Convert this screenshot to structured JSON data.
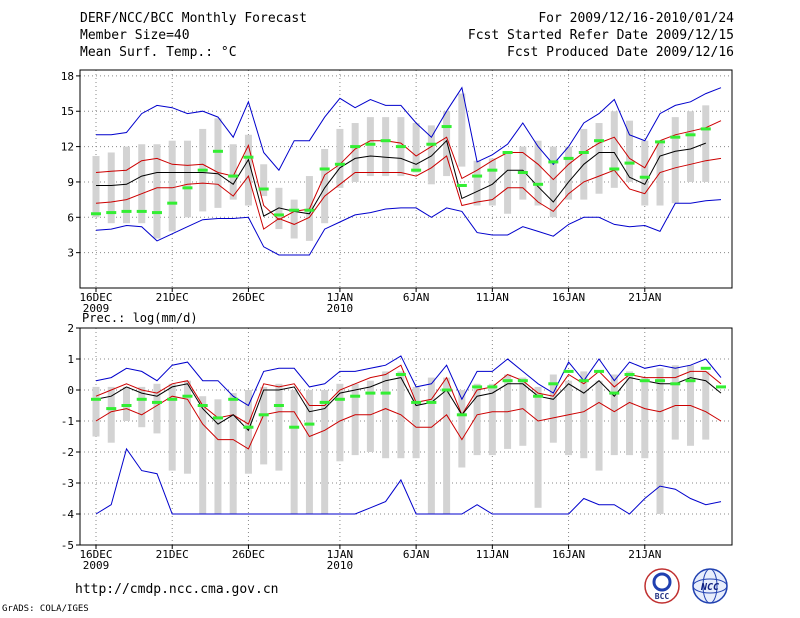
{
  "header": {
    "title": "DERF/NCC/BCC Monthly Forecast",
    "member_size": "Member Size=40",
    "variable1": "Mean Surf. Temp.: °C",
    "for_period": "For 2009/12/16-2010/01/24",
    "fcst_started": "Fcst Started Refer Date 2009/12/15",
    "fcst_produced": "Fcst Produced Date 2009/12/16"
  },
  "footer": {
    "url": "http://cmdp.ncc.cma.gov.cn",
    "grads": "GrADS: COLA/IGES",
    "logo_bcc": "BCC",
    "logo_ncc": "NCC"
  },
  "colors": {
    "max_line": "#0000cc",
    "pct_line": "#cc0000",
    "mean_line": "#000000",
    "box": "#d3d3d3",
    "obs_mark": "#33ee33",
    "grid": "#888888"
  },
  "chart_data": [
    {
      "type": "line",
      "title": "Mean Surf. Temp.: °C",
      "ylim": [
        0,
        18.5
      ],
      "yticks": [
        3,
        6,
        9,
        12,
        15,
        18
      ],
      "xtick_labels": [
        {
          "i": 0,
          "label": "16DEC",
          "sub": "2009"
        },
        {
          "i": 5,
          "label": "21DEC",
          "sub": ""
        },
        {
          "i": 10,
          "label": "26DEC",
          "sub": ""
        },
        {
          "i": 16,
          "label": "1JAN",
          "sub": "2010"
        },
        {
          "i": 21,
          "label": "6JAN",
          "sub": ""
        },
        {
          "i": 26,
          "label": "11JAN",
          "sub": ""
        },
        {
          "i": 31,
          "label": "16JAN",
          "sub": ""
        },
        {
          "i": 36,
          "label": "21JAN",
          "sub": ""
        }
      ],
      "days": 40,
      "series": [
        {
          "name": "max",
          "values": [
            13,
            13,
            13.2,
            14.8,
            15.5,
            15.3,
            14.8,
            15,
            14.5,
            12.8,
            15.8,
            11.5,
            10,
            12.5,
            12.5,
            14.5,
            16.1,
            15.3,
            16,
            15.5,
            15.5,
            14,
            12.8,
            15,
            17,
            10.7,
            11.3,
            12.2,
            14,
            12,
            10.5,
            12,
            14,
            14.8,
            16,
            13,
            12.5,
            14.8,
            15.5,
            15.8,
            16.5,
            17
          ]
        },
        {
          "name": "upper_pct",
          "values": [
            9.8,
            9.9,
            10,
            10.8,
            11,
            10.5,
            10.4,
            10.5,
            9.8,
            9.5,
            12.1,
            7,
            5.8,
            6.5,
            6.7,
            9.6,
            10.5,
            11.8,
            12.5,
            12.5,
            12.3,
            11.2,
            12,
            12.8,
            9.3,
            10,
            10.8,
            11.5,
            11.5,
            10.5,
            9.2,
            10.5,
            11.5,
            12.3,
            12.8,
            11,
            10.2,
            12.5,
            13,
            13.3,
            13.6,
            14.2
          ]
        },
        {
          "name": "mean",
          "values": [
            8.7,
            8.7,
            8.8,
            9.5,
            9.8,
            9.8,
            9.8,
            9.8,
            9.7,
            8.8,
            10.9,
            6.1,
            6.8,
            6.5,
            6.3,
            8.5,
            10.2,
            11,
            11.2,
            11.1,
            11,
            10.5,
            11.2,
            12.5,
            7.6,
            8.2,
            8.8,
            10,
            10,
            8.6,
            7.3,
            9,
            10.5,
            11.5,
            11.5,
            9.4,
            8.8,
            11.2,
            11.6,
            11.8,
            12.3
          ]
        },
        {
          "name": "lower_pct",
          "values": [
            7.2,
            7.3,
            7.5,
            8,
            8.5,
            8.5,
            8.8,
            8.9,
            8.8,
            7.8,
            9.5,
            5,
            5.9,
            5.4,
            6,
            7.8,
            8.8,
            9.8,
            9.8,
            9.8,
            9.8,
            9.5,
            10.2,
            11.2,
            7,
            7.3,
            7.5,
            8.5,
            8.5,
            7.3,
            6.5,
            8,
            9,
            9.5,
            10,
            8.4,
            8,
            9.8,
            10.2,
            10.5,
            10.8,
            11
          ]
        },
        {
          "name": "min",
          "values": [
            4.9,
            5,
            5.3,
            5.2,
            4,
            4.6,
            5.2,
            5.8,
            5.9,
            5.9,
            6,
            3.5,
            2.8,
            2.8,
            2.8,
            5,
            5.6,
            6.2,
            6.4,
            6.7,
            6.8,
            6.8,
            6,
            6.8,
            6.5,
            4.7,
            4.5,
            4.5,
            5.2,
            4.8,
            4.4,
            5.4,
            6,
            6,
            5.4,
            5.2,
            5.3,
            4.8,
            7.2,
            7.2,
            7.4,
            7.5
          ]
        }
      ],
      "boxes_low": [
        6,
        5.5,
        5.5,
        5.5,
        4.2,
        4.8,
        6,
        6.5,
        6.8,
        7.5,
        7,
        7.8,
        5,
        4.2,
        4,
        5.5,
        8.5,
        9,
        9.5,
        9.5,
        9.5,
        9.8,
        8.8,
        9.5,
        10.3,
        7,
        7,
        6.3,
        7.5,
        7,
        6,
        7.5,
        7.5,
        8,
        8.5,
        9,
        7,
        7,
        7.2,
        9,
        9
      ],
      "boxes_high": [
        11.2,
        11.5,
        12,
        12.2,
        12.2,
        12.5,
        12.5,
        13.5,
        14.4,
        12.2,
        13,
        10.5,
        8.5,
        7.5,
        9.5,
        11.8,
        13.5,
        14,
        14.5,
        14.5,
        14.5,
        14,
        13.8,
        15,
        16.5,
        10.8,
        11,
        11.5,
        12,
        12.5,
        12,
        12,
        13.5,
        14,
        15,
        14.2,
        12.5,
        12.5,
        14.5,
        15,
        15.5
      ],
      "obs_marks": [
        6.3,
        6.4,
        6.5,
        6.5,
        6.4,
        7.2,
        8.5,
        10,
        11.6,
        9.5,
        11.1,
        8.4,
        6.2,
        6.6,
        6.6,
        10.1,
        10.5,
        12,
        12.2,
        12.5,
        12,
        10,
        12.2,
        13.7,
        8.7,
        9.5,
        10,
        11.5,
        9.8,
        8.8,
        10.7,
        11,
        11.5,
        12.5,
        10.1,
        10.6,
        9.4,
        12.4,
        12.8,
        13,
        13.5
      ]
    },
    {
      "type": "line",
      "title": "Prec.: log(mm/d)",
      "ylim": [
        -5,
        2
      ],
      "yticks": [
        -5,
        -4,
        -3,
        -2,
        -1,
        0,
        1,
        2
      ],
      "xtick_labels": [
        {
          "i": 0,
          "label": "16DEC",
          "sub": "2009"
        },
        {
          "i": 5,
          "label": "21DEC",
          "sub": ""
        },
        {
          "i": 10,
          "label": "26DEC",
          "sub": ""
        },
        {
          "i": 16,
          "label": "1JAN",
          "sub": "2010"
        },
        {
          "i": 21,
          "label": "6JAN",
          "sub": ""
        },
        {
          "i": 26,
          "label": "11JAN",
          "sub": ""
        },
        {
          "i": 31,
          "label": "16JAN",
          "sub": ""
        },
        {
          "i": 36,
          "label": "21JAN",
          "sub": ""
        }
      ],
      "days": 40,
      "series": [
        {
          "name": "max",
          "values": [
            0.3,
            0.4,
            0.7,
            0.6,
            0.3,
            0.8,
            0.9,
            0.3,
            0.3,
            -0.2,
            -0.5,
            0.6,
            0.7,
            0.7,
            0.1,
            0.2,
            0.6,
            0.6,
            0.7,
            0.8,
            1.1,
            0.1,
            0.2,
            0.8,
            -0.3,
            0.6,
            0.6,
            1,
            0.6,
            0.2,
            -0.1,
            0.9,
            0.3,
            1,
            0.3,
            0.9,
            0.7,
            0.8,
            0.7,
            0.8,
            1,
            0.4
          ]
        },
        {
          "name": "upper_pct",
          "values": [
            -0.2,
            0,
            0.2,
            0,
            -0.1,
            0.2,
            0.3,
            -0.5,
            -0.9,
            -0.8,
            -1.1,
            0.2,
            0.1,
            0.2,
            -0.5,
            -0.5,
            0,
            0.2,
            0.4,
            0.5,
            0.8,
            -0.4,
            -0.3,
            0.4,
            -0.8,
            0,
            0.1,
            0.5,
            0.3,
            -0.1,
            -0.2,
            0.5,
            0.2,
            0.6,
            0.1,
            0.5,
            0.4,
            0.4,
            0.4,
            0.6,
            0.6,
            0.2
          ]
        },
        {
          "name": "mean",
          "values": [
            -0.3,
            -0.2,
            0.1,
            -0.1,
            -0.2,
            0.1,
            0.2,
            -0.6,
            -1.1,
            -0.8,
            -1.3,
            0,
            0,
            0.1,
            -0.7,
            -0.6,
            -0.1,
            0,
            0.1,
            0.3,
            0.4,
            -0.5,
            -0.4,
            0,
            -0.8,
            -0.2,
            -0.1,
            0.2,
            0.2,
            -0.2,
            -0.3,
            0.2,
            -0.1,
            0.3,
            -0.2,
            0.4,
            0.3,
            0.2,
            0.2,
            0.4,
            0.3,
            -0.1
          ]
        },
        {
          "name": "lower_pct",
          "values": [
            -1,
            -0.7,
            -0.6,
            -0.8,
            -0.5,
            -0.2,
            -0.3,
            -1.1,
            -1.6,
            -1.6,
            -1.9,
            -0.8,
            -0.7,
            -0.7,
            -1.5,
            -1.3,
            -1,
            -0.8,
            -0.8,
            -0.6,
            -0.8,
            -1.2,
            -1.2,
            -0.8,
            -1.6,
            -0.8,
            -0.7,
            -0.7,
            -0.6,
            -1,
            -0.9,
            -0.8,
            -0.7,
            -0.4,
            -0.7,
            -0.4,
            -0.6,
            -0.7,
            -0.5,
            -0.5,
            -0.7,
            -1
          ]
        },
        {
          "name": "min",
          "values": [
            -4,
            -3.7,
            -1.9,
            -2.6,
            -2.7,
            -4,
            -4,
            -4,
            -4,
            -4,
            -4,
            -4,
            -4,
            -4,
            -4,
            -4,
            -4,
            -4,
            -3.8,
            -3.6,
            -2.9,
            -4,
            -4,
            -4,
            -4,
            -3.7,
            -4,
            -4,
            -4,
            -4,
            -4,
            -4,
            -3.5,
            -3.7,
            -3.7,
            -4,
            -3.5,
            -3.1,
            -3.2,
            -3.5,
            -3.7,
            -3.6
          ]
        }
      ],
      "boxes_low": [
        -1.5,
        -1.7,
        -1,
        -1.2,
        -1.4,
        -2.6,
        -2.7,
        -4,
        -4,
        -4,
        -2.7,
        -2.4,
        -2.6,
        -4,
        -4,
        -4,
        -2.3,
        -2.1,
        -2,
        -2.2,
        -2.2,
        -2.2,
        -4,
        -4,
        -2.5,
        -2.1,
        -2.1,
        -1.9,
        -1.8,
        -3.8,
        -1.7,
        -2.1,
        -2.2,
        -2.6,
        -2.1,
        -2.1,
        -2.2,
        -4,
        -1.6,
        -1.8,
        -1.6
      ],
      "boxes_high": [
        0.1,
        0.1,
        0.1,
        0.1,
        0.2,
        0.2,
        0.3,
        -0.2,
        -0.3,
        -0.1,
        0,
        0.1,
        0.2,
        0,
        0,
        0,
        0.2,
        0.2,
        0.3,
        0.6,
        0.6,
        0.1,
        0.4,
        0.4,
        0,
        0.2,
        0.2,
        0.5,
        0.4,
        0.1,
        0.5,
        0.3,
        0.6,
        0.3,
        0.5,
        0.6,
        0.4,
        0.7,
        0.8,
        0.8,
        0.6
      ],
      "obs_marks": [
        -0.3,
        -0.6,
        -0.5,
        -0.3,
        -0.4,
        -0.3,
        -0.2,
        -0.5,
        -0.9,
        -0.3,
        -1.2,
        -0.8,
        -0.5,
        -1.2,
        -1.1,
        -0.4,
        -0.3,
        -0.2,
        -0.1,
        -0.1,
        0.5,
        -0.4,
        -0.4,
        0,
        -0.8,
        0.1,
        0.1,
        0.3,
        0.3,
        -0.2,
        0.2,
        0.6,
        0.3,
        0.6,
        -0.1,
        0.5,
        0.3,
        0.3,
        0.2,
        0.3,
        0.7,
        0.1
      ]
    }
  ]
}
